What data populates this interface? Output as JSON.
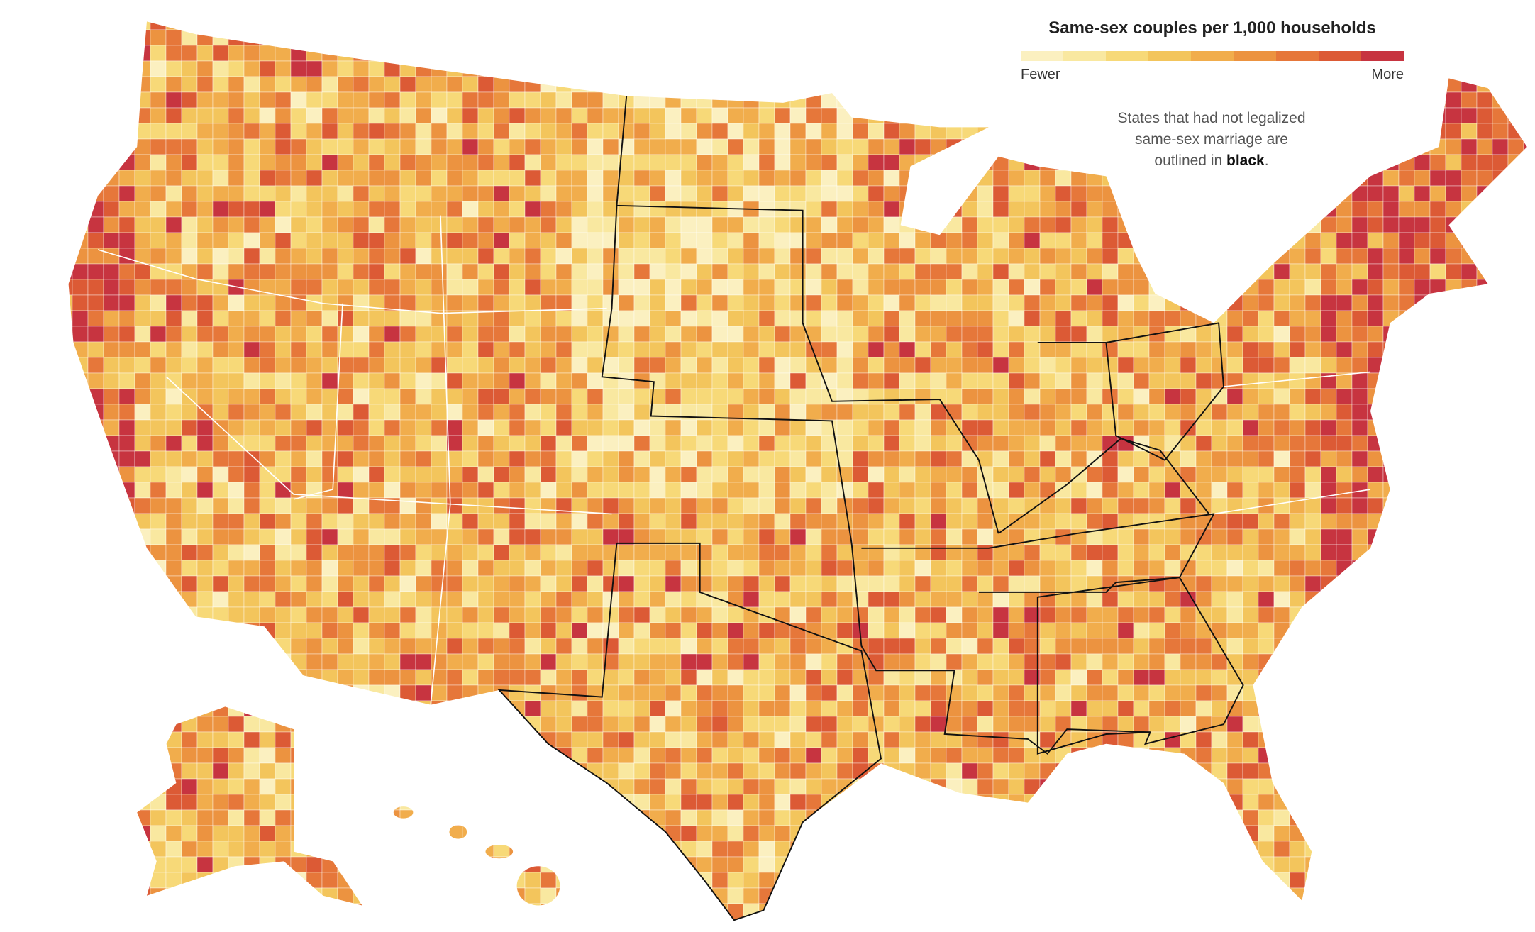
{
  "legend": {
    "title": "Same-sex couples per 1,000 households",
    "low_label": "Fewer",
    "high_label": "More",
    "colors": [
      "#fbf0c0",
      "#f9e8a0",
      "#f7d978",
      "#f3c55c",
      "#f1ad4c",
      "#ec9340",
      "#e6773a",
      "#dc5a35",
      "#c73440"
    ]
  },
  "note": {
    "line_1": "States that had not legalized",
    "line_2": "same-sex marriage are",
    "line_3": "outlined in",
    "emphasis": "black",
    "end": "."
  }
}
